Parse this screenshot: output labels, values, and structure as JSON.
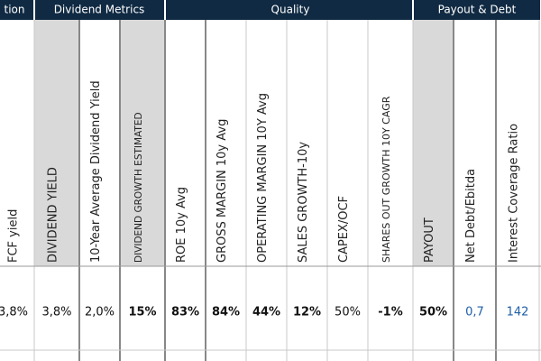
{
  "groups": [
    "tion",
    "Dividend Metrics",
    "Quality",
    "Payout & Debt"
  ],
  "columns": [
    {
      "header": "FCF yield",
      "value": "3,8%"
    },
    {
      "header": "DIVIDEND YIELD",
      "value": "3,8%"
    },
    {
      "header": "10-Year Average Dividend Yield",
      "value": "2,0%"
    },
    {
      "header": "DIVIDEND GROWTH ESTIMATED",
      "value": "15%"
    },
    {
      "header": "ROE 10y Avg",
      "value": "83%"
    },
    {
      "header": "GROSS MARGIN 10y Avg",
      "value": "84%"
    },
    {
      "header": "OPERATING MARGIN 10Y Avg",
      "value": "44%"
    },
    {
      "header": "SALES GROWTH-10y",
      "value": "12%"
    },
    {
      "header": "CAPEX/OCF",
      "value": "50%"
    },
    {
      "header": "SHARES OUT GROWTH 10Y CAGR",
      "value": "-1%"
    },
    {
      "header": "PAYOUT",
      "value": "50%"
    },
    {
      "header": "Net Debt/Ebitda",
      "value": "0,7"
    },
    {
      "header": "Interest Coverage Ratio",
      "value": "142"
    }
  ]
}
